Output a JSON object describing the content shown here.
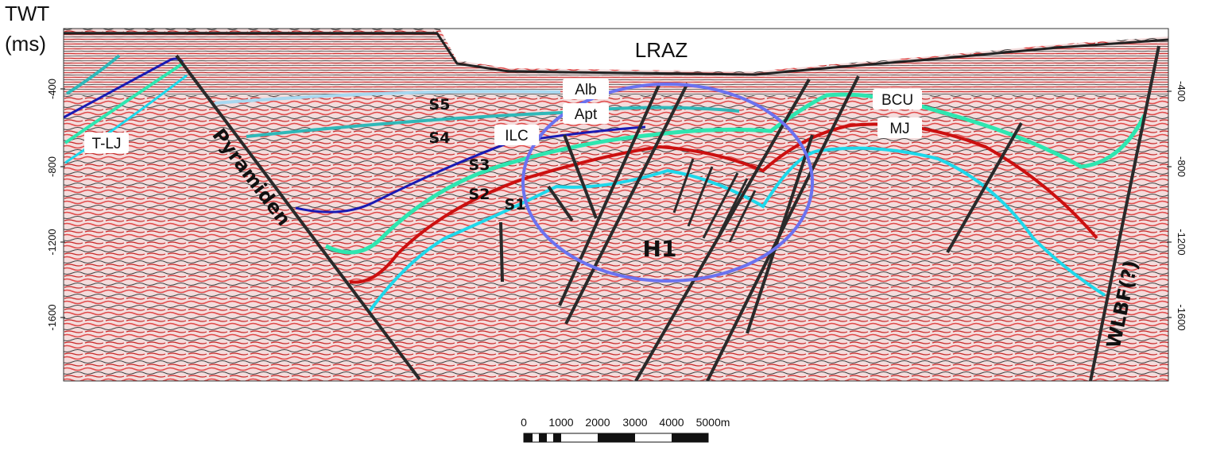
{
  "axis_title": {
    "line1": "TWT",
    "line2": "(ms)"
  },
  "y_ticks_left": [
    "-400",
    "-800",
    "-1200",
    "-1600"
  ],
  "y_ticks_right": [
    "-400",
    "-800",
    "-1200",
    "-1600"
  ],
  "labels": {
    "lraz": "LRAZ",
    "alb": "Alb",
    "apt": "Apt",
    "ilc": "ILC",
    "bcu": "BCU",
    "mj": "MJ",
    "tlj": "T-LJ",
    "s5": "S5",
    "s4": "S4",
    "s3": "S3",
    "s2": "S2",
    "s1": "S1",
    "h1": "H1",
    "pyramiden": "Pyramiden",
    "wlbf": "WLBF(?)"
  },
  "scale_bar": {
    "ticks": [
      "0",
      "1000",
      "2000",
      "3000",
      "4000",
      "5000m"
    ]
  },
  "colors": {
    "alb_horizon": "#a8d8f0",
    "apt_horizon": "#2fb8b8",
    "ilc_horizon": "#1a1ab4",
    "bcu_horizon": "#2ee6b0",
    "mj_horizon": "#cc1010",
    "cyan_horizon": "#1ed8ea",
    "fault": "#2a2a2a",
    "ellipse": "#6b72f0"
  }
}
